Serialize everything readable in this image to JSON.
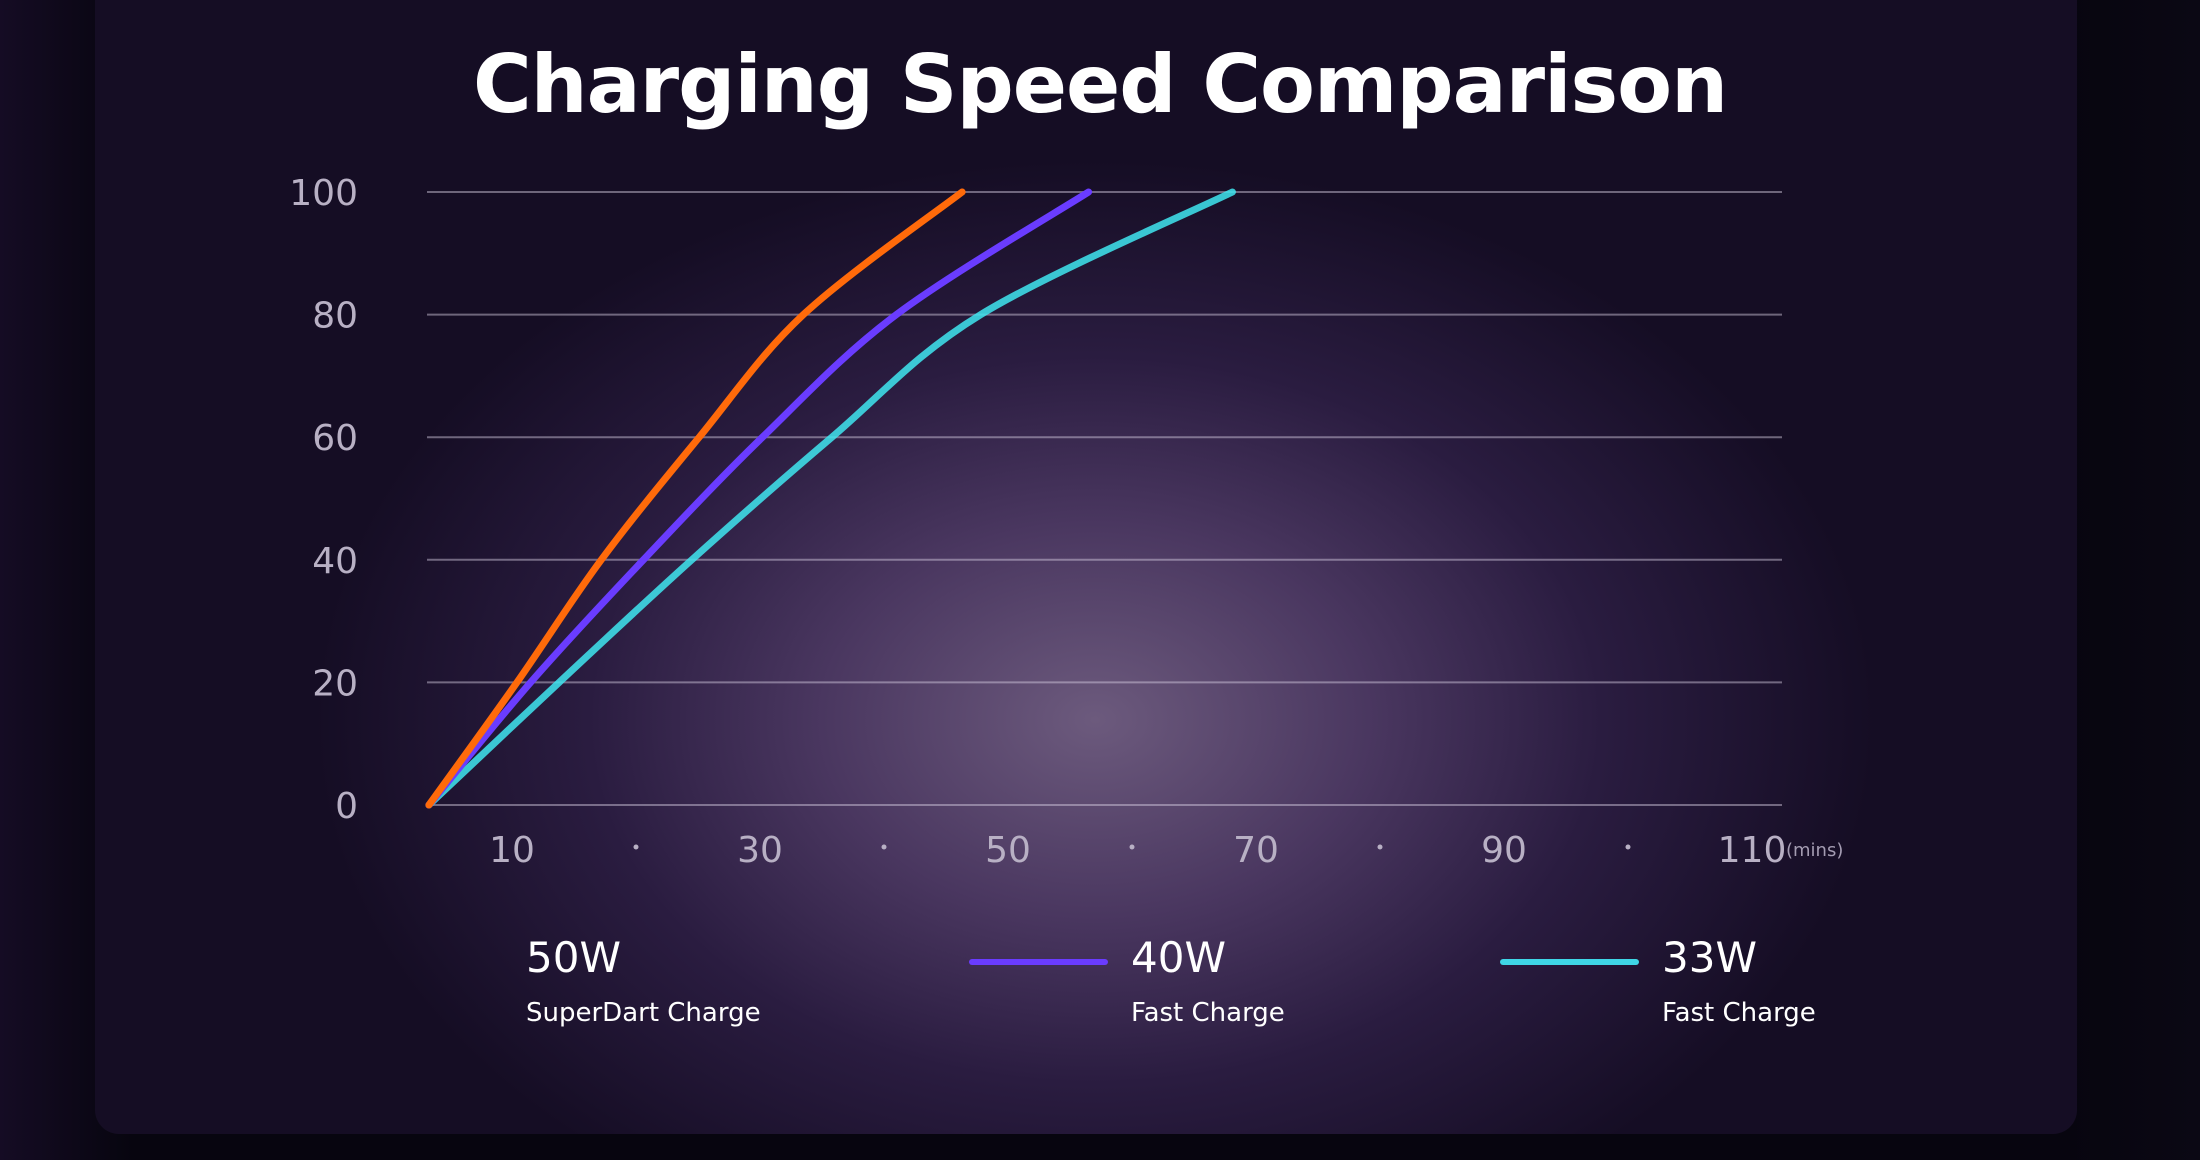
{
  "chart_data": {
    "type": "line",
    "title": "Charging Speed Comparison",
    "xlabel": "",
    "x_unit": "(mins)",
    "ylabel": "",
    "ylim": [
      0,
      100
    ],
    "y_ticks": [
      "0",
      "20",
      "40",
      "60",
      "80",
      "100"
    ],
    "x_ticks": [
      "10",
      "30",
      "50",
      "70",
      "90",
      "110"
    ],
    "x_tick_values": [
      10,
      30,
      50,
      70,
      90,
      110
    ],
    "grid": true,
    "legend_placement": "bottom",
    "series": [
      {
        "name": "50W",
        "subtitle": "SuperDart Charge",
        "color": "#ff6a0a",
        "legend_color": "#ffa21a",
        "x": [
          3.3,
          10.4,
          17.2,
          25.1,
          33.5,
          46.3
        ],
        "y": [
          0,
          20,
          40,
          60,
          80,
          100
        ]
      },
      {
        "name": "40W",
        "subtitle": "Fast Charge",
        "color": "#6a3cff",
        "legend_color": "#6a3cff",
        "x": [
          3.3,
          11.5,
          20.6,
          30.2,
          41,
          56.5
        ],
        "y": [
          0,
          20,
          40,
          60,
          80,
          100
        ]
      },
      {
        "name": "33W",
        "subtitle": "Fast Charge",
        "color": "#3fe6f0",
        "legend_color": "#3fd6e6",
        "x": [
          3.3,
          13.8,
          24.5,
          35.8,
          47.8,
          68.1
        ],
        "y": [
          0,
          20,
          40,
          60,
          80,
          100
        ]
      }
    ]
  }
}
